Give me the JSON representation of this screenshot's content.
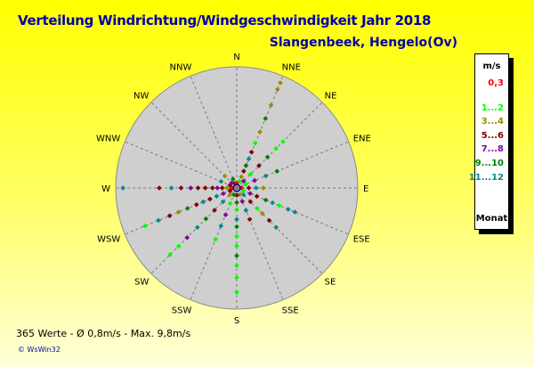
{
  "title": "Verteilung Windrichtung/Windgeschwindigkeit  Jahr 2018",
  "station": "Slangenbeek, Hengelo(Ov)",
  "stats": "365 Werte   -   Ø 0,8m/s  -  Max. 9,8m/s",
  "footer": "© WsWin32",
  "legend": {
    "header": "m/s",
    "footer": "Monat",
    "items": [
      {
        "label": "0,3",
        "color": "#ff0000"
      },
      {
        "label": "1...2",
        "color": "#00ff00"
      },
      {
        "label": "3...4",
        "color": "#9b8a00"
      },
      {
        "label": "5...6",
        "color": "#800000"
      },
      {
        "label": "7...8",
        "color": "#8000a0"
      },
      {
        "label": "9...10",
        "color": "#008000"
      },
      {
        "label": "11...12",
        "color": "#008b8b"
      }
    ]
  },
  "chart_data": {
    "type": "scatter",
    "coordinate_system": "polar",
    "directions": [
      "N",
      "NNE",
      "NE",
      "ENE",
      "E",
      "ESE",
      "SE",
      "SSE",
      "S",
      "SSW",
      "SW",
      "WSW",
      "W",
      "WNW",
      "NW",
      "NNW"
    ],
    "radial_max_ms": 10,
    "series_note": "points colored by Monat",
    "series": [
      {
        "direction": "NNE",
        "points": [
          [
            0.6,
            "#00ff00"
          ],
          [
            1.0,
            "#9b8a00"
          ],
          [
            1.5,
            "#800000"
          ],
          [
            2.0,
            "#008000"
          ],
          [
            2.6,
            "#008b8b"
          ],
          [
            3.2,
            "#800000"
          ],
          [
            4.0,
            "#00ff00"
          ],
          [
            5.0,
            "#9b8a00"
          ],
          [
            6.2,
            "#008000"
          ],
          [
            7.4,
            "#9b8a00"
          ],
          [
            8.8,
            "#9b8a00"
          ],
          [
            9.4,
            "#9b8a00"
          ]
        ]
      },
      {
        "direction": "NE",
        "points": [
          [
            0.8,
            "#8000a0"
          ],
          [
            1.6,
            "#00ff00"
          ],
          [
            2.6,
            "#800000"
          ],
          [
            3.6,
            "#008000"
          ],
          [
            4.6,
            "#00ff00"
          ],
          [
            5.4,
            "#00ff00"
          ]
        ]
      },
      {
        "direction": "ENE",
        "points": [
          [
            0.8,
            "#00ff00"
          ],
          [
            1.6,
            "#8000a0"
          ],
          [
            2.6,
            "#008b8b"
          ],
          [
            3.6,
            "#008000"
          ]
        ]
      },
      {
        "direction": "E",
        "points": [
          [
            0.4,
            "#ff0000"
          ],
          [
            1.0,
            "#800000"
          ],
          [
            1.6,
            "#008b8b"
          ],
          [
            2.2,
            "#9b8a00"
          ]
        ]
      },
      {
        "direction": "ESE",
        "points": [
          [
            0.6,
            "#00ff00"
          ],
          [
            1.2,
            "#8000a0"
          ],
          [
            1.8,
            "#800000"
          ],
          [
            2.6,
            "#008000"
          ],
          [
            3.2,
            "#008b8b"
          ],
          [
            3.8,
            "#00ff00"
          ],
          [
            4.6,
            "#008b8b"
          ],
          [
            5.2,
            "#008b8b"
          ]
        ]
      },
      {
        "direction": "SE",
        "points": [
          [
            0.8,
            "#008b8b"
          ],
          [
            1.6,
            "#800000"
          ],
          [
            2.4,
            "#00ff00"
          ],
          [
            3.0,
            "#9b8a00"
          ],
          [
            3.8,
            "#800000"
          ],
          [
            4.6,
            "#008b8b"
          ]
        ]
      },
      {
        "direction": "SSE",
        "points": [
          [
            0.6,
            "#9b8a00"
          ],
          [
            1.2,
            "#8000a0"
          ],
          [
            2.0,
            "#008b8b"
          ],
          [
            2.8,
            "#800000"
          ]
        ]
      },
      {
        "direction": "S",
        "points": [
          [
            0.6,
            "#800000"
          ],
          [
            1.2,
            "#008000"
          ],
          [
            1.8,
            "#00ff00"
          ],
          [
            2.6,
            "#008b8b"
          ],
          [
            3.2,
            "#008000"
          ],
          [
            4.0,
            "#00ff00"
          ],
          [
            4.8,
            "#00ff00"
          ],
          [
            5.6,
            "#008000"
          ],
          [
            6.4,
            "#00ff00"
          ],
          [
            7.4,
            "#00ff00"
          ],
          [
            8.6,
            "#00ff00"
          ]
        ]
      },
      {
        "direction": "SSW",
        "points": [
          [
            0.6,
            "#008000"
          ],
          [
            1.4,
            "#00ff00"
          ],
          [
            2.4,
            "#8000a0"
          ],
          [
            3.4,
            "#008b8b"
          ],
          [
            4.6,
            "#00ff00"
          ]
        ]
      },
      {
        "direction": "SW",
        "points": [
          [
            0.8,
            "#9b8a00"
          ],
          [
            1.6,
            "#008b8b"
          ],
          [
            2.6,
            "#800000"
          ],
          [
            3.6,
            "#008000"
          ],
          [
            4.6,
            "#008b8b"
          ],
          [
            5.8,
            "#8000a0"
          ],
          [
            6.8,
            "#00ff00"
          ],
          [
            7.8,
            "#00ff00"
          ]
        ]
      },
      {
        "direction": "WSW",
        "points": [
          [
            0.6,
            "#800000"
          ],
          [
            1.2,
            "#8000a0"
          ],
          [
            1.8,
            "#008b8b"
          ],
          [
            2.4,
            "#800000"
          ],
          [
            3.0,
            "#008b8b"
          ],
          [
            3.6,
            "#800000"
          ],
          [
            4.4,
            "#008000"
          ],
          [
            5.2,
            "#9b8a00"
          ],
          [
            6.0,
            "#800000"
          ],
          [
            7.0,
            "#008b8b"
          ],
          [
            8.2,
            "#00ff00"
          ]
        ]
      },
      {
        "direction": "W",
        "points": [
          [
            0.4,
            "#ff0000"
          ],
          [
            0.8,
            "#9b8a00"
          ],
          [
            1.2,
            "#800000"
          ],
          [
            1.6,
            "#8000a0"
          ],
          [
            2.0,
            "#800000"
          ],
          [
            2.6,
            "#800000"
          ],
          [
            3.2,
            "#800000"
          ],
          [
            3.8,
            "#8000a0"
          ],
          [
            4.6,
            "#800000"
          ],
          [
            5.4,
            "#008b8b"
          ],
          [
            6.4,
            "#800000"
          ],
          [
            9.4,
            "#008b8b"
          ]
        ]
      },
      {
        "direction": "WNW",
        "points": [
          [
            0.6,
            "#800000"
          ],
          [
            1.4,
            "#008b8b"
          ]
        ]
      },
      {
        "direction": "NW",
        "points": [
          [
            0.6,
            "#8000a0"
          ],
          [
            1.4,
            "#9b8a00"
          ]
        ]
      },
      {
        "direction": "NNW",
        "points": [
          [
            0.4,
            "#800000"
          ],
          [
            0.8,
            "#008000"
          ]
        ]
      },
      {
        "direction": "N",
        "points": [
          [
            0.4,
            "#ff0000"
          ]
        ]
      }
    ]
  }
}
